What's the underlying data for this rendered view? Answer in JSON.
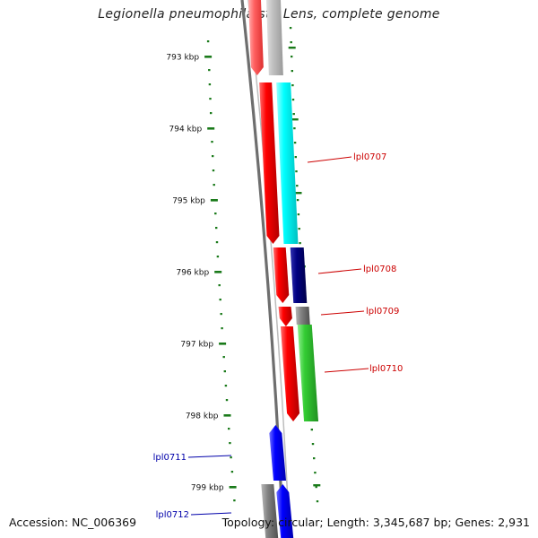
{
  "title": "Legionella pneumophila str. Lens, complete genome",
  "accession_text": "Accession: NC_006369",
  "topology_text": "Topology: circular; Length: 3,345,687 bp; Genes: 2,931",
  "ticks": [
    {
      "label": "793 kbp"
    },
    {
      "label": "794 kbp"
    },
    {
      "label": "795 kbp"
    },
    {
      "label": "796 kbp"
    },
    {
      "label": "797 kbp"
    },
    {
      "label": "798 kbp"
    },
    {
      "label": "799 kbp"
    }
  ],
  "gene_labels": [
    {
      "name": "lpl0707",
      "color": "#cc0000"
    },
    {
      "name": "lpl0708",
      "color": "#cc0000"
    },
    {
      "name": "lpl0709",
      "color": "#cc0000"
    },
    {
      "name": "lpl0710",
      "color": "#cc0000"
    },
    {
      "name": "lpl0711",
      "color": "#0000aa"
    },
    {
      "name": "lpl0712",
      "color": "#0000aa"
    }
  ],
  "colors": {
    "backbone": "#7a7a7a",
    "tick": "#1a7a1a",
    "red": "#ff0000",
    "cyan": "#00ffff",
    "navy": "#000080",
    "green": "#33cc33",
    "gray": "#808080",
    "blue": "#0000ff"
  }
}
